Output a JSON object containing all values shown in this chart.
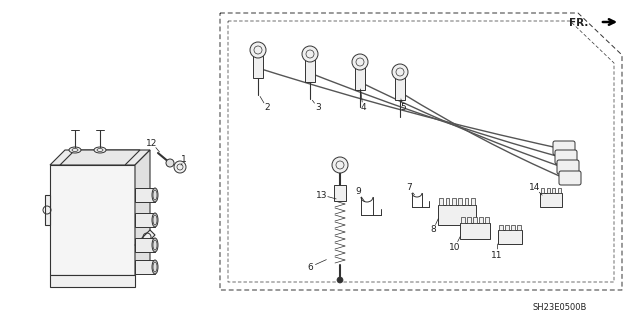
{
  "bg_color": "#ffffff",
  "line_color": "#333333",
  "text_color": "#222222",
  "part_number_text": "SH23E0500B",
  "fr_label": "FR.",
  "fig_width": 6.4,
  "fig_height": 3.19,
  "dpi": 100,
  "wire_color": "#555555",
  "label_fontsize": 6.5,
  "pn_fontsize": 6.0
}
